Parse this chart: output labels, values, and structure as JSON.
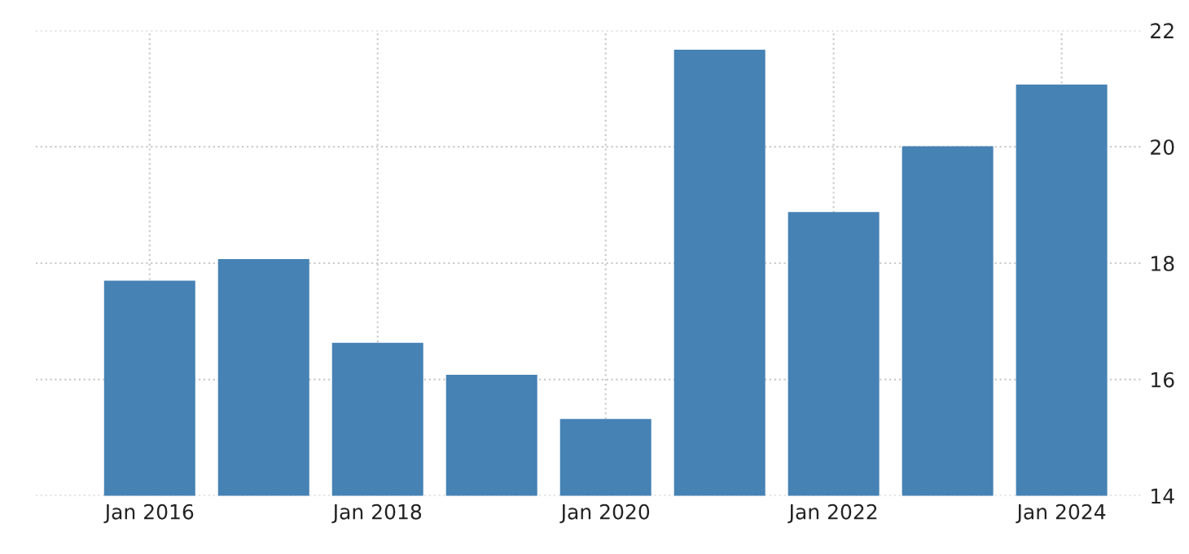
{
  "chart_data": {
    "type": "bar",
    "categories": [
      "Jan 2016",
      null,
      "Jan 2018",
      null,
      "Jan 2020",
      null,
      "Jan 2022",
      null,
      "Jan 2024"
    ],
    "values": [
      17.7,
      18.07,
      16.63,
      16.08,
      15.32,
      21.67,
      18.88,
      20.01,
      21.07
    ],
    "color": "#4682b4",
    "ylim": [
      14,
      22
    ],
    "yticks": [
      14,
      16,
      18,
      20,
      22
    ],
    "grid": true
  }
}
